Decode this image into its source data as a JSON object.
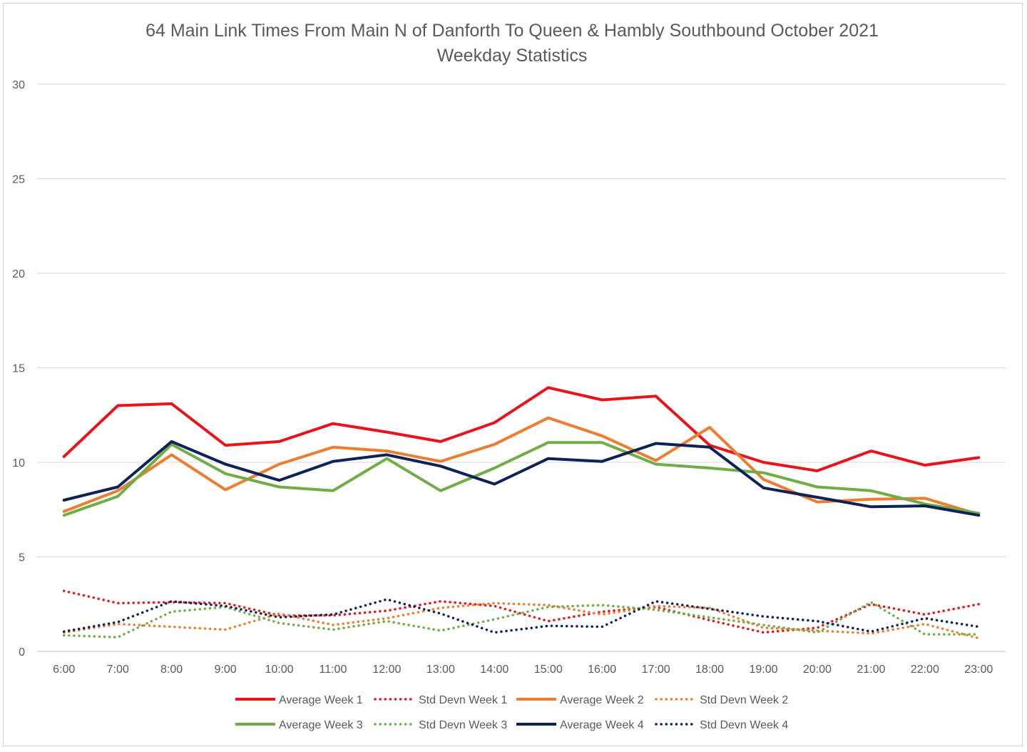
{
  "chart_data": {
    "type": "line",
    "title": "64 Main Link Times From Main N of Danforth To Queen & Hambly Southbound October 2021",
    "subtitle": "Weekday Statistics",
    "xlabel": "",
    "ylabel": "",
    "ylim": [
      0,
      30
    ],
    "yticks": [
      "0",
      "5",
      "10",
      "15",
      "20",
      "25",
      "30"
    ],
    "grid": true,
    "legend_position": "bottom",
    "categories": [
      "6:00",
      "7:00",
      "8:00",
      "9:00",
      "10:00",
      "11:00",
      "12:00",
      "13:00",
      "14:00",
      "15:00",
      "16:00",
      "17:00",
      "18:00",
      "19:00",
      "20:00",
      "21:00",
      "22:00",
      "23:00"
    ],
    "series": [
      {
        "name": "Average Week 1",
        "color": "#e8141b",
        "style": "solid",
        "values": [
          10.3,
          13.0,
          13.1,
          10.9,
          11.1,
          12.05,
          11.6,
          11.1,
          12.1,
          13.95,
          13.3,
          13.5,
          10.9,
          10.0,
          9.55,
          10.6,
          9.85,
          10.25
        ]
      },
      {
        "name": "Std Devn Week 1",
        "color": "#e8141b",
        "style": "dotted",
        "values": [
          3.2,
          2.55,
          2.6,
          2.55,
          1.9,
          1.9,
          2.15,
          2.65,
          2.4,
          1.6,
          2.1,
          2.35,
          1.65,
          1.0,
          1.25,
          2.5,
          1.95,
          2.5
        ]
      },
      {
        "name": "Average Week 2",
        "color": "#ed7d31",
        "style": "solid",
        "values": [
          7.4,
          8.5,
          10.4,
          8.55,
          9.9,
          10.8,
          10.6,
          10.05,
          10.95,
          12.35,
          11.4,
          10.1,
          11.85,
          9.1,
          7.9,
          8.05,
          8.1,
          7.25
        ]
      },
      {
        "name": "Std Devn Week 2",
        "color": "#ed7d31",
        "style": "dotted",
        "values": [
          1.0,
          1.45,
          1.3,
          1.15,
          2.0,
          1.4,
          1.75,
          2.3,
          2.55,
          2.45,
          1.95,
          2.4,
          2.3,
          1.25,
          1.1,
          0.95,
          1.45,
          0.7
        ]
      },
      {
        "name": "Average Week 3",
        "color": "#70ad47",
        "style": "solid",
        "values": [
          7.2,
          8.2,
          10.95,
          9.4,
          8.7,
          8.5,
          10.2,
          8.5,
          9.7,
          11.05,
          11.05,
          9.9,
          9.7,
          9.45,
          8.7,
          8.5,
          7.8,
          7.3
        ]
      },
      {
        "name": "Std Devn Week 3",
        "color": "#70ad47",
        "style": "dotted",
        "values": [
          0.85,
          0.75,
          2.1,
          2.35,
          1.5,
          1.15,
          1.6,
          1.1,
          1.7,
          2.35,
          2.45,
          2.2,
          1.8,
          1.4,
          1.0,
          2.6,
          0.9,
          0.9
        ]
      },
      {
        "name": "Average Week 4",
        "color": "#0d2357",
        "style": "solid",
        "values": [
          8.0,
          8.7,
          11.1,
          9.9,
          9.05,
          10.05,
          10.4,
          9.8,
          8.85,
          10.2,
          10.05,
          11.0,
          10.8,
          8.65,
          8.15,
          7.65,
          7.7,
          7.2
        ]
      },
      {
        "name": "Std Devn Week 4",
        "color": "#0d2357",
        "style": "dotted",
        "values": [
          1.05,
          1.55,
          2.65,
          2.4,
          1.8,
          1.95,
          2.75,
          2.0,
          1.0,
          1.35,
          1.3,
          2.65,
          2.25,
          1.85,
          1.6,
          1.05,
          1.75,
          1.3
        ]
      }
    ]
  }
}
